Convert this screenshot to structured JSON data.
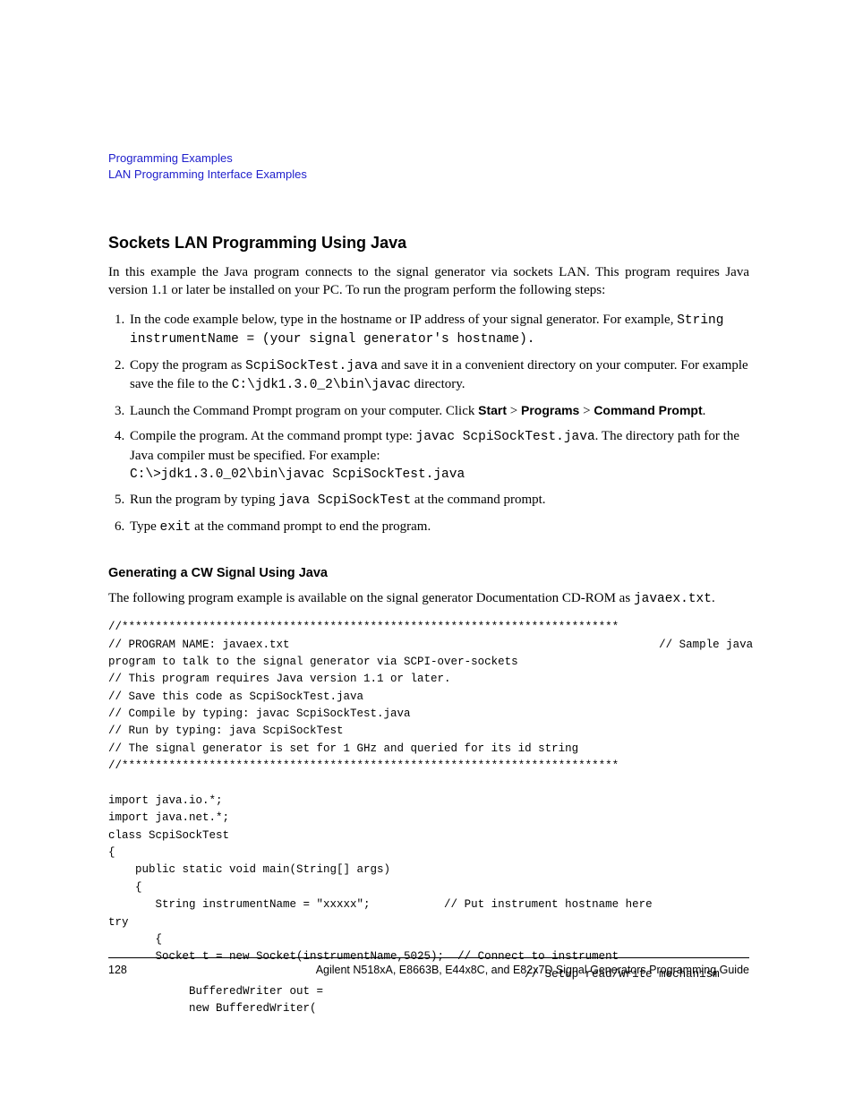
{
  "breadcrumb": {
    "line1": "Programming Examples",
    "line2": "LAN Programming Interface Examples"
  },
  "section": {
    "title": "Sockets LAN Programming Using Java",
    "intro": "In this example the Java program connects to the signal generator via sockets LAN. This program requires Java version 1.1 or later be installed on your PC. To run the program perform the following steps:"
  },
  "steps": {
    "s1a": "In the code example below, type in the hostname or IP address of your signal generator. For example, ",
    "s1b": "String instrumentName = (your signal generator's hostname).",
    "s2a": "Copy the program as ",
    "s2b": "ScpiSockTest.java",
    "s2c": " and save it in a convenient directory on your computer. For example save the file to the ",
    "s2d": "C:\\jdk1.3.0_2\\bin\\javac",
    "s2e": " directory.",
    "s3a": "Launch the Command Prompt program on your computer. Click ",
    "s3_start": "Start",
    "s3_sep": " > ",
    "s3_programs": "Programs",
    "s3_cmd": "Command Prompt",
    "s3_end": ".",
    "s4a": "Compile the program. At the command prompt type: ",
    "s4b": "javac ScpiSockTest.java",
    "s4c": ". The directory path for the Java compiler must be specified. For example:",
    "s4d": "C:\\>jdk1.3.0_02\\bin\\javac ScpiSockTest.java",
    "s5a": "Run the program by typing ",
    "s5b": "java ScpiSockTest",
    "s5c": " at the command prompt.",
    "s6a": "Type ",
    "s6b": "exit",
    "s6c": " at the command prompt to end the program."
  },
  "subsection": {
    "title": "Generating a CW Signal Using Java",
    "intro_a": "The following program example is available on the signal generator Documentation CD-ROM as ",
    "intro_b": "javaex.txt",
    "intro_c": "."
  },
  "code": "//**************************************************************************\n// PROGRAM NAME: javaex.txt                                                       // Sample java \nprogram to talk to the signal generator via SCPI-over-sockets\n// This program requires Java version 1.1 or later. \n// Save this code as ScpiSockTest.java\n// Compile by typing: javac ScpiSockTest.java\n// Run by typing: java ScpiSockTest\n// The signal generator is set for 1 GHz and queried for its id string\n//**************************************************************************\n\nimport java.io.*;\nimport java.net.*;\nclass ScpiSockTest\n{\n    public static void main(String[] args)\n    {\n       String instrumentName = \"xxxxx\";           // Put instrument hostname here \ntry\n       {\n       Socket t = new Socket(instrumentName,5025);  // Connect to instrument\n                                                              // Setup read/write mechanism\n            BufferedWriter out =\n            new BufferedWriter(",
  "footer": {
    "page": "128",
    "text": "Agilent N518xA, E8663B, E44x8C, and E82x7D Signal Generators Programming Guide"
  }
}
